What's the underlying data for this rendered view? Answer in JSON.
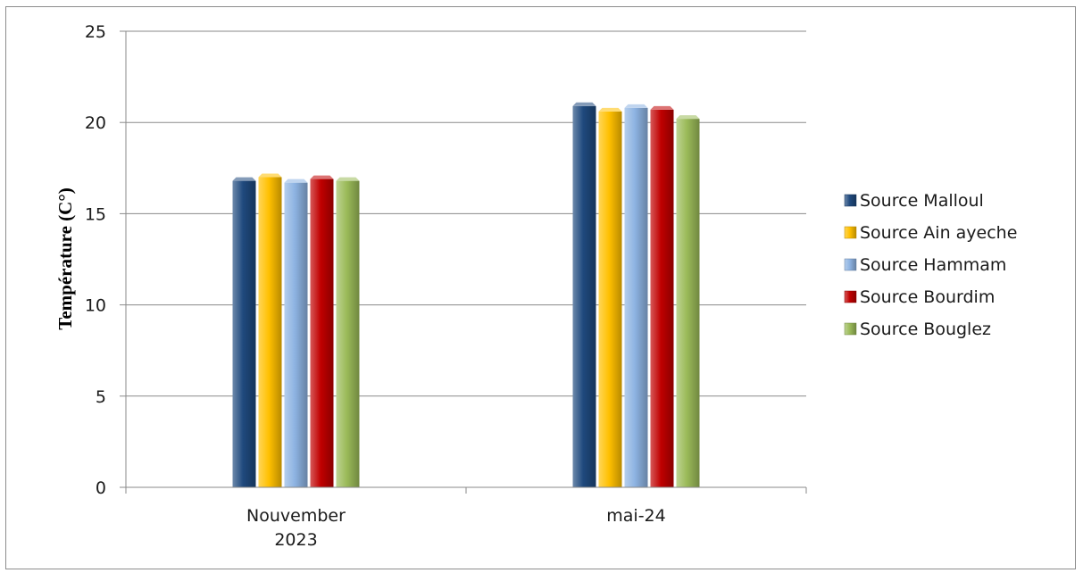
{
  "chart_data": {
    "type": "bar",
    "ylabel": "Température (C°)",
    "xlabel": "",
    "ylim": [
      0,
      25
    ],
    "yticks": [
      0,
      5,
      10,
      15,
      20,
      25
    ],
    "grid": true,
    "legend_position": "right",
    "categories": [
      {
        "lines": [
          "Nouvember",
          "2023"
        ]
      },
      {
        "lines": [
          "mai-24"
        ]
      }
    ],
    "series": [
      {
        "name": "Source Malloul",
        "color": "#1f497d",
        "values": [
          16.8,
          20.9
        ]
      },
      {
        "name": "Source Ain ayeche",
        "color": "#ffc000",
        "values": [
          17.0,
          20.6
        ]
      },
      {
        "name": "Source Hammam",
        "color": "#8db3e2",
        "values": [
          16.7,
          20.8
        ]
      },
      {
        "name": "Source Bourdim",
        "color": "#c00000",
        "values": [
          16.9,
          20.7
        ]
      },
      {
        "name": "Source Bouglez",
        "color": "#9bbb59",
        "values": [
          16.8,
          20.2
        ]
      }
    ]
  }
}
